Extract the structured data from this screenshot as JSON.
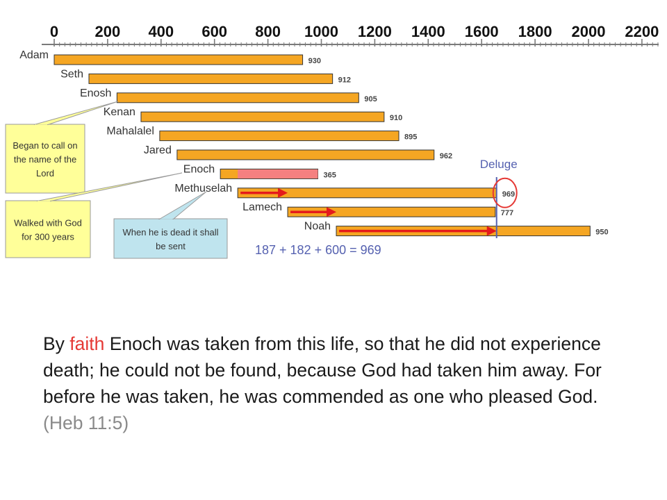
{
  "chart_data": {
    "type": "bar",
    "x_ticks": [
      0,
      200,
      400,
      600,
      800,
      1000,
      1200,
      1400,
      1600,
      1800,
      2000,
      2200
    ],
    "bars": [
      {
        "name": "Adam",
        "start": 0,
        "end": 930,
        "value": 930
      },
      {
        "name": "Seth",
        "start": 130,
        "end": 1042,
        "value": 912
      },
      {
        "name": "Enosh",
        "start": 235,
        "end": 1140,
        "value": 905
      },
      {
        "name": "Kenan",
        "start": 325,
        "end": 1235,
        "value": 910
      },
      {
        "name": "Mahalalel",
        "start": 395,
        "end": 1290,
        "value": 895
      },
      {
        "name": "Jared",
        "start": 460,
        "end": 1422,
        "value": 962
      },
      {
        "name": "Enoch",
        "start": 622,
        "end": 987,
        "value": 365
      },
      {
        "name": "Methuselah",
        "start": 687,
        "end": 1656,
        "value": 969
      },
      {
        "name": "Lamech",
        "start": 874,
        "end": 1651,
        "value": 777
      },
      {
        "name": "Noah",
        "start": 1056,
        "end": 2006,
        "value": 950
      }
    ],
    "enoch_walk": {
      "start": 687,
      "end": 987
    },
    "arrows": [
      {
        "row": "Methuselah",
        "from": 687,
        "to": 874
      },
      {
        "row": "Lamech",
        "from": 874,
        "to": 1056
      },
      {
        "row": "Noah",
        "from": 1056,
        "to": 1656
      }
    ],
    "deluge": {
      "label": "Deluge",
      "year": 1656
    },
    "equation": "187 +  182  +  600  = 969",
    "callouts": [
      {
        "text": "Began to call on the name of the Lord",
        "target": "Enosh"
      },
      {
        "text": "Walked with God for 300 years",
        "target": "Enoch"
      },
      {
        "text": "When he is dead it shall be sent",
        "target": "Methuselah"
      }
    ],
    "colors": {
      "bar": "#F5A623",
      "bar_stroke": "#333333",
      "enoch_walk": "#F58080",
      "arrow": "#E41B1B",
      "deluge": "#5561B0",
      "circle": "#E53935",
      "callout_yellow": "#FFFF99",
      "callout_blue": "#BFE4EE",
      "callout_stroke": "#9A9A9A"
    }
  },
  "verse": {
    "prefix": "By ",
    "highlight": "faith",
    "body": " Enoch was taken from this life, so that he did not experience death; he could not be found, because God had taken him away. For before he was taken, he was commended as one who pleased God.",
    "reference": "(Heb 11:5)"
  }
}
